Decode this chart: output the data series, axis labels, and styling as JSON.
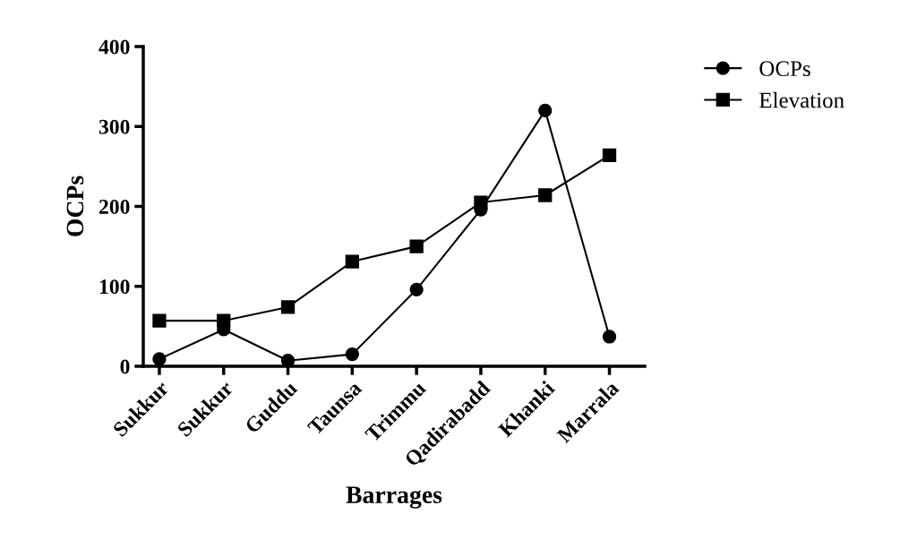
{
  "chart_data": {
    "type": "line",
    "xlabel": "Barrages",
    "ylabel": "OCPs",
    "categories": [
      "Sukkur",
      "Sukkur",
      "Guddu",
      "Taunsa",
      "Trimmu",
      "Qadirabadd",
      "Khanki",
      "Marrala"
    ],
    "series": [
      {
        "name": "OCPs",
        "color": "#000000",
        "marker": "circle",
        "values": [
          9,
          46,
          7,
          15,
          96,
          196,
          320,
          37
        ]
      },
      {
        "name": "Elevation",
        "color": "#000000",
        "marker": "square",
        "values": [
          57,
          57,
          74,
          131,
          150,
          205,
          214,
          264
        ]
      }
    ],
    "ylim": [
      0,
      400
    ],
    "yticks": [
      0,
      100,
      200,
      300,
      400
    ],
    "grid": false,
    "legend": "top right",
    "line_style": "solid"
  }
}
